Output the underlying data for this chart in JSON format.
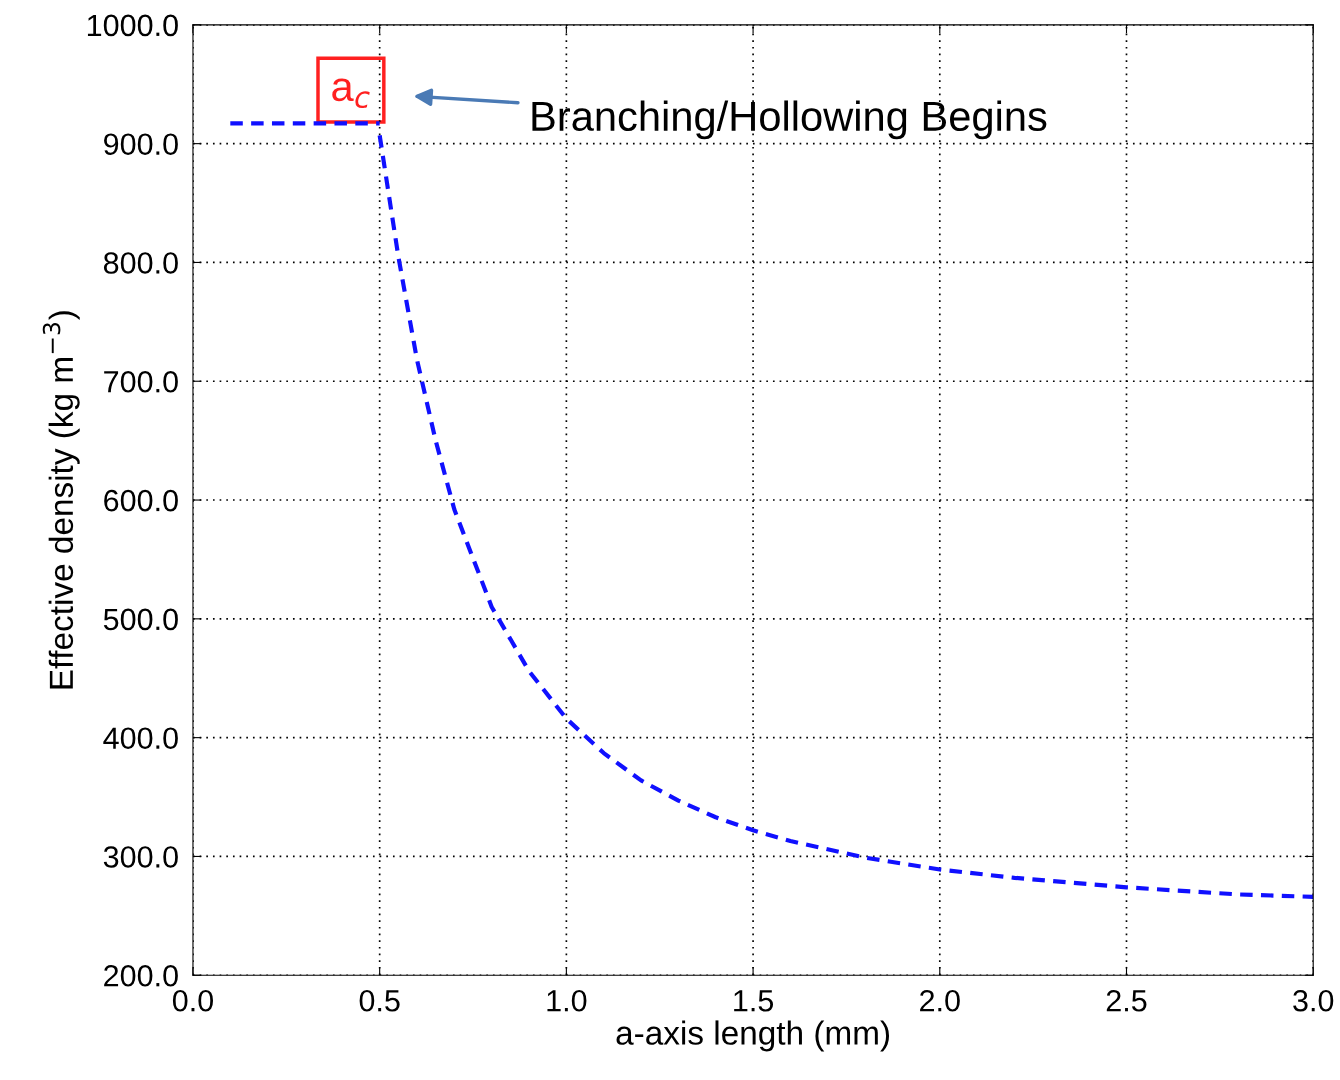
{
  "chart_data": {
    "type": "line",
    "xlabel": "a-axis length (mm)",
    "ylabel": "Effective density (kg m$^{−3}$)",
    "series": [
      {
        "color": "#1010ff",
        "x": [
          0.1,
          0.2,
          0.3,
          0.4,
          0.5
        ],
        "values": [
          917,
          917,
          917,
          917,
          917
        ]
      },
      {
        "color": "#1010ff",
        "x": [
          0.5,
          0.55,
          0.6,
          0.65,
          0.7,
          0.8,
          0.9,
          1.0,
          1.1,
          1.2,
          1.3,
          1.4,
          1.5,
          1.6,
          1.8,
          2.0,
          2.2,
          2.5,
          2.8,
          3.0
        ],
        "values": [
          907,
          805,
          718,
          650,
          592,
          510,
          456,
          416,
          387,
          364,
          347,
          333,
          322,
          313,
          299,
          289,
          282,
          274,
          268,
          266
        ]
      }
    ],
    "line_style": "dashed",
    "marker": "none",
    "grid": true,
    "xlim": [
      0.0,
      3.0
    ],
    "ylim": [
      200.0,
      1000.0
    ],
    "xticks": [
      {
        "value": 0.0,
        "label": "0.0"
      },
      {
        "value": 0.5,
        "label": "0.5"
      },
      {
        "value": 1.0,
        "label": "1.0"
      },
      {
        "value": 1.5,
        "label": "1.5"
      },
      {
        "value": 2.0,
        "label": "2.0"
      },
      {
        "value": 2.5,
        "label": "2.5"
      },
      {
        "value": 3.0,
        "label": "3.0"
      }
    ],
    "yticks": [
      {
        "value": 200.0,
        "label": "200.0"
      },
      {
        "value": 300.0,
        "label": "300.0"
      },
      {
        "value": 400.0,
        "label": "400.0"
      },
      {
        "value": 500.0,
        "label": "500.0"
      },
      {
        "value": 600.0,
        "label": "600.0"
      },
      {
        "value": 700.0,
        "label": "700.0"
      },
      {
        "value": 800.0,
        "label": "800.0"
      },
      {
        "value": 900.0,
        "label": "900.0"
      },
      {
        "value": 1000.0,
        "label": "1000.0"
      }
    ],
    "annotations": [
      {
        "text": "a$_{c}$",
        "x": 0.5,
        "y": 917
      },
      "Branching/Hollowing Begins"
    ]
  }
}
